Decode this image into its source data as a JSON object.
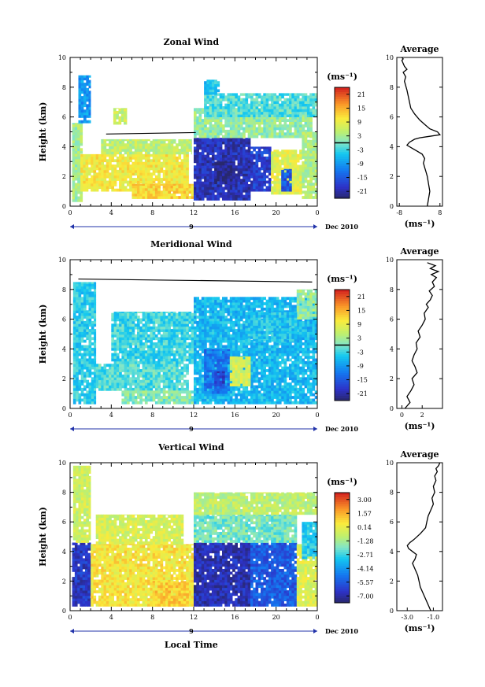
{
  "figure": {
    "date_label": "Dec 2010",
    "day_label": "9",
    "xlabel": "Local Time",
    "ylabel": "Height (km)",
    "unit_label": "(ms⁻¹)",
    "avg_title": "Average",
    "avg_unit": "(ms⁻¹)"
  },
  "chart_data": [
    {
      "type": "heatmap",
      "title": "Zonal Wind",
      "xlabel": "",
      "ylabel": "Height (km)",
      "x_ticks": [
        "0",
        "4",
        "8",
        "12",
        "16",
        "20",
        "0"
      ],
      "xlim": [
        0,
        24
      ],
      "ylim": [
        0,
        10
      ],
      "y_ticks": [
        "0",
        "2",
        "4",
        "6",
        "8",
        "10"
      ],
      "colorbar": {
        "unit": "(ms⁻¹)",
        "ticks": [
          "21",
          "15",
          "9",
          "3",
          "-3",
          "-9",
          "-15",
          "-21"
        ],
        "range": [
          -24,
          24
        ]
      },
      "patches": [
        {
          "t0": 0.2,
          "t1": 1.2,
          "h0": 0.3,
          "h1": 5.6,
          "v": 3
        },
        {
          "t0": 0.8,
          "t1": 2.0,
          "h0": 5.6,
          "h1": 8.8,
          "v": -9
        },
        {
          "t0": 1.0,
          "t1": 11.5,
          "h0": 1.0,
          "h1": 3.5,
          "v": 10
        },
        {
          "t0": 3.0,
          "t1": 11.8,
          "h0": 3.5,
          "h1": 4.5,
          "v": 5
        },
        {
          "t0": 6.0,
          "t1": 12.0,
          "h0": 0.5,
          "h1": 1.5,
          "v": 12
        },
        {
          "t0": 4.2,
          "t1": 5.5,
          "h0": 5.5,
          "h1": 6.6,
          "v": 6
        },
        {
          "t0": 12.0,
          "t1": 17.5,
          "h0": 0.4,
          "h1": 4.6,
          "v": -20
        },
        {
          "t0": 14.0,
          "t1": 16.0,
          "h0": 1.5,
          "h1": 3.0,
          "v": -23
        },
        {
          "t0": 12.0,
          "t1": 23.5,
          "h0": 4.6,
          "h1": 6.6,
          "v": 2
        },
        {
          "t0": 13.0,
          "t1": 24.0,
          "h0": 6.0,
          "h1": 7.6,
          "v": -2
        },
        {
          "t0": 17.5,
          "t1": 19.5,
          "h0": 1.0,
          "h1": 4.0,
          "v": -18
        },
        {
          "t0": 19.5,
          "t1": 22.5,
          "h0": 0.8,
          "h1": 3.8,
          "v": 8
        },
        {
          "t0": 20.5,
          "t1": 21.5,
          "h0": 1.0,
          "h1": 2.5,
          "v": -15
        },
        {
          "t0": 22.5,
          "t1": 24.0,
          "h0": 0.5,
          "h1": 5.0,
          "v": 4
        },
        {
          "t0": 13.0,
          "t1": 14.5,
          "h0": 7.5,
          "h1": 8.5,
          "v": -5
        }
      ],
      "average_profile": {
        "title": "Average",
        "xlabel": "(ms⁻¹)",
        "x_ticks": [
          "-8",
          "8"
        ],
        "xlim": [
          -9,
          9
        ],
        "y_ticks": [
          "0",
          "2",
          "4",
          "6",
          "8",
          "10"
        ],
        "ylim": [
          0,
          10
        ],
        "x": [
          3,
          3.5,
          4,
          3.5,
          3,
          2.5,
          2,
          1.5,
          2,
          1,
          -1,
          -3,
          -5,
          -4,
          -2,
          0,
          4,
          8,
          7,
          4,
          2,
          0,
          -2,
          -3.5,
          -4,
          -4.5,
          -5,
          -5.5,
          -6,
          -5.5,
          -6.5,
          -5,
          -6,
          -6.5,
          -7,
          -6.5,
          -7
        ],
        "y": [
          0,
          0.5,
          1,
          1.5,
          2,
          2.3,
          2.6,
          2.9,
          3.2,
          3.5,
          3.7,
          3.9,
          4.1,
          4.3,
          4.5,
          4.6,
          4.7,
          4.8,
          5.0,
          5.2,
          5.5,
          5.8,
          6.2,
          6.6,
          7.0,
          7.4,
          7.8,
          8.1,
          8.4,
          8.7,
          9.0,
          9.2,
          9.4,
          9.6,
          9.8,
          9.9,
          10
        ]
      }
    },
    {
      "type": "heatmap",
      "title": "Meridional Wind",
      "xlabel": "",
      "ylabel": "Height (km)",
      "x_ticks": [
        "0",
        "4",
        "8",
        "12",
        "16",
        "20",
        "0"
      ],
      "xlim": [
        0,
        24
      ],
      "ylim": [
        0,
        10
      ],
      "y_ticks": [
        "0",
        "2",
        "4",
        "6",
        "8",
        "10"
      ],
      "colorbar": {
        "unit": "(ms⁻¹)",
        "ticks": [
          "21",
          "15",
          "9",
          "3",
          "-3",
          "-9",
          "-15",
          "-21"
        ],
        "range": [
          -24,
          24
        ]
      },
      "patches": [
        {
          "t0": 0.3,
          "t1": 2.5,
          "h0": 0.3,
          "h1": 8.5,
          "v": -4
        },
        {
          "t0": 2.5,
          "t1": 11.5,
          "h0": 1.2,
          "h1": 3.0,
          "v": -2
        },
        {
          "t0": 4.0,
          "t1": 12.0,
          "h0": 3.0,
          "h1": 6.5,
          "v": -3
        },
        {
          "t0": 5.0,
          "t1": 12.0,
          "h0": 0.3,
          "h1": 1.2,
          "v": 1
        },
        {
          "t0": 12.0,
          "t1": 24.0,
          "h0": 0.3,
          "h1": 7.5,
          "v": -6
        },
        {
          "t0": 13.0,
          "t1": 15.5,
          "h0": 1.0,
          "h1": 4.0,
          "v": -12
        },
        {
          "t0": 14.0,
          "t1": 15.0,
          "h0": 1.5,
          "h1": 2.5,
          "v": -18
        },
        {
          "t0": 15.5,
          "t1": 17.5,
          "h0": 1.5,
          "h1": 3.5,
          "v": 7
        },
        {
          "t0": 22.0,
          "t1": 24.0,
          "h0": 6.0,
          "h1": 8.0,
          "v": 2
        },
        {
          "t0": 17.0,
          "t1": 22.0,
          "h0": 4.5,
          "h1": 6.5,
          "v": -5
        }
      ],
      "average_profile": {
        "title": "Average",
        "xlabel": "(ms⁻¹)",
        "x_ticks": [
          "0",
          "2"
        ],
        "xlim": [
          -0.5,
          4
        ],
        "y_ticks": [
          "0",
          "2",
          "4",
          "6",
          "8",
          "10"
        ],
        "ylim": [
          0,
          10
        ],
        "x": [
          0.3,
          0.8,
          0.5,
          0.9,
          1.2,
          1.0,
          1.5,
          1.3,
          1.0,
          1.2,
          1.5,
          1.4,
          1.8,
          1.6,
          2.0,
          2.3,
          2.2,
          2.6,
          2.4,
          2.8,
          3.0,
          2.7,
          3.2,
          3.0,
          3.4,
          2.9,
          3.6,
          2.8,
          3.3,
          2.5
        ],
        "y": [
          0,
          0.4,
          0.8,
          1.2,
          1.6,
          2.0,
          2.4,
          2.8,
          3.2,
          3.6,
          4.0,
          4.4,
          4.8,
          5.2,
          5.6,
          6.0,
          6.4,
          6.8,
          7.0,
          7.3,
          7.6,
          7.9,
          8.2,
          8.5,
          8.8,
          9.0,
          9.2,
          9.4,
          9.6,
          9.8
        ]
      }
    },
    {
      "type": "heatmap",
      "title": "Vertical Wind",
      "xlabel": "Local Time",
      "ylabel": "Height (km)",
      "x_ticks": [
        "0",
        "4",
        "8",
        "12",
        "16",
        "20",
        "0"
      ],
      "xlim": [
        0,
        24
      ],
      "ylim": [
        0,
        10
      ],
      "y_ticks": [
        "0",
        "2",
        "4",
        "6",
        "8",
        "10"
      ],
      "colorbar": {
        "unit": "(ms⁻¹)",
        "ticks": [
          "3.00",
          "1.57",
          "0.14",
          "-1.28",
          "-2.71",
          "-4.14",
          "-5.57",
          "-7.00"
        ],
        "range": [
          -7.7,
          3.7
        ]
      },
      "patches": [
        {
          "t0": 0.2,
          "t1": 2.0,
          "h0": 0.3,
          "h1": 4.6,
          "v": -6.5
        },
        {
          "t0": 0.3,
          "t1": 2.0,
          "h0": 4.6,
          "h1": 9.8,
          "v": -0.5
        },
        {
          "t0": 2.0,
          "t1": 12.0,
          "h0": 0.3,
          "h1": 4.5,
          "v": 0.5
        },
        {
          "t0": 2.5,
          "t1": 11.0,
          "h0": 4.5,
          "h1": 6.5,
          "v": -0.3
        },
        {
          "t0": 12.0,
          "t1": 17.5,
          "h0": 0.3,
          "h1": 4.6,
          "v": -6.8
        },
        {
          "t0": 17.5,
          "t1": 22.0,
          "h0": 0.3,
          "h1": 4.6,
          "v": -5.5
        },
        {
          "t0": 12.0,
          "t1": 22.0,
          "h0": 4.6,
          "h1": 6.5,
          "v": -2.0
        },
        {
          "t0": 12.0,
          "t1": 24.0,
          "h0": 6.5,
          "h1": 8.0,
          "v": -0.8
        },
        {
          "t0": 22.0,
          "t1": 24.0,
          "h0": 0.3,
          "h1": 4.5,
          "v": -0.2
        },
        {
          "t0": 22.5,
          "t1": 24.0,
          "h0": 3.5,
          "h1": 6.0,
          "v": -3.0
        },
        {
          "t0": 8.0,
          "t1": 11.5,
          "h0": 0.3,
          "h1": 2.0,
          "v": 1.0
        }
      ],
      "average_profile": {
        "title": "Average",
        "xlabel": "(ms⁻¹)",
        "x_ticks": [
          "-3.0",
          "-1.0"
        ],
        "xlim": [
          -3.8,
          -0.3
        ],
        "y_ticks": [
          "0",
          "2",
          "4",
          "6",
          "8",
          "10"
        ],
        "ylim": [
          0,
          10
        ],
        "x": [
          -1.2,
          -1.4,
          -1.6,
          -1.8,
          -2.0,
          -2.1,
          -2.2,
          -2.4,
          -2.6,
          -2.4,
          -2.3,
          -2.6,
          -2.9,
          -3.0,
          -2.8,
          -2.5,
          -2.0,
          -1.6,
          -1.5,
          -1.4,
          -1.2,
          -1.0,
          -1.1,
          -0.9,
          -1.0,
          -0.8,
          -0.9,
          -0.7,
          -0.8,
          -0.6,
          -0.5
        ],
        "y": [
          0,
          0.4,
          0.8,
          1.2,
          1.6,
          2.0,
          2.4,
          2.8,
          3.2,
          3.5,
          3.8,
          4.0,
          4.2,
          4.4,
          4.6,
          4.8,
          5.2,
          5.6,
          6.0,
          6.4,
          6.8,
          7.2,
          7.6,
          8.0,
          8.4,
          8.8,
          9.1,
          9.4,
          9.6,
          9.8,
          10
        ]
      }
    }
  ]
}
